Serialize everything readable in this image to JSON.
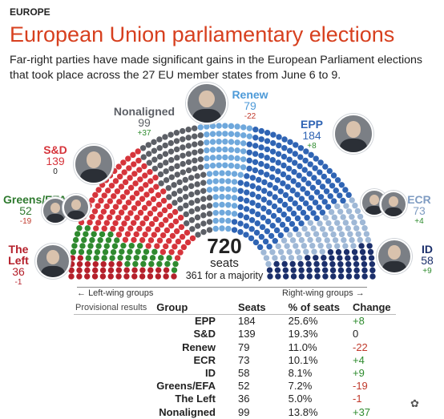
{
  "kicker": "EUROPE",
  "title": "European Union parliamentary elections",
  "subtitle": "Far-right parties have made significant gains in the European Parliament elections that took place across the 27 EU member states from June 6 to 9.",
  "center": {
    "total": "720",
    "unit": "seats",
    "majority": "361 for a majority"
  },
  "axis": {
    "left": "Left-wing groups",
    "right": "Right-wing groups"
  },
  "chart_data": {
    "type": "hemicycle",
    "total_seats": 720,
    "majority": 361,
    "order_left_to_right": [
      "The Left",
      "Greens/EFA",
      "S&D",
      "Nonaligned",
      "Renew",
      "EPP",
      "ECR",
      "ID"
    ],
    "groups": [
      {
        "name": "The Left",
        "seats": 36,
        "change": "-1",
        "color": "#b5202b"
      },
      {
        "name": "Greens/EFA",
        "seats": 52,
        "change": "-19",
        "color": "#2f8a2f"
      },
      {
        "name": "S&D",
        "seats": 139,
        "change": "0",
        "color": "#d6343b"
      },
      {
        "name": "Nonaligned",
        "seats": 99,
        "change": "+37",
        "color": "#5c5f66"
      },
      {
        "name": "Renew",
        "seats": 79,
        "change": "-22",
        "color": "#6fa8dc"
      },
      {
        "name": "EPP",
        "seats": 184,
        "change": "+8",
        "color": "#2f64b4"
      },
      {
        "name": "ECR",
        "seats": 73,
        "change": "+4",
        "color": "#9fb8d6"
      },
      {
        "name": "ID",
        "seats": 58,
        "change": "+9",
        "color": "#1b2f6b"
      }
    ]
  },
  "labels": {
    "left": {
      "name": "The Left",
      "seats": "36",
      "change": "-1"
    },
    "greens": {
      "name": "Greens/EFA",
      "seats": "52",
      "change": "-19"
    },
    "sd": {
      "name": "S&D",
      "seats": "139",
      "change": "0"
    },
    "nonaligned": {
      "name": "Nonaligned",
      "seats": "99",
      "change": "+37"
    },
    "renew": {
      "name": "Renew",
      "seats": "79",
      "change": "-22"
    },
    "epp": {
      "name": "EPP",
      "seats": "184",
      "change": "+8"
    },
    "ecr": {
      "name": "ECR",
      "seats": "73",
      "change": "+4"
    },
    "id": {
      "name": "ID",
      "seats": "58",
      "change": "+9"
    }
  },
  "table": {
    "caption": "Provisional results",
    "headers": {
      "group": "Group",
      "seats": "Seats",
      "pct": "% of seats",
      "change": "Change"
    },
    "rows": [
      {
        "group": "EPP",
        "seats": "184",
        "pct": "25.6%",
        "change": "+8"
      },
      {
        "group": "S&D",
        "seats": "139",
        "pct": "19.3%",
        "change": "0"
      },
      {
        "group": "Renew",
        "seats": "79",
        "pct": "11.0%",
        "change": "-22"
      },
      {
        "group": "ECR",
        "seats": "73",
        "pct": "10.1%",
        "change": "+4"
      },
      {
        "group": "ID",
        "seats": "58",
        "pct": "8.1%",
        "change": "+9"
      },
      {
        "group": "Greens/EFA",
        "seats": "52",
        "pct": "7.2%",
        "change": "-19"
      },
      {
        "group": "The Left",
        "seats": "36",
        "pct": "5.0%",
        "change": "-1"
      },
      {
        "group": "Nonaligned",
        "seats": "99",
        "pct": "13.8%",
        "change": "+37"
      }
    ]
  },
  "colors": {
    "title": "#d7401f",
    "positive": "#2e8b2e",
    "negative": "#c0392b"
  }
}
